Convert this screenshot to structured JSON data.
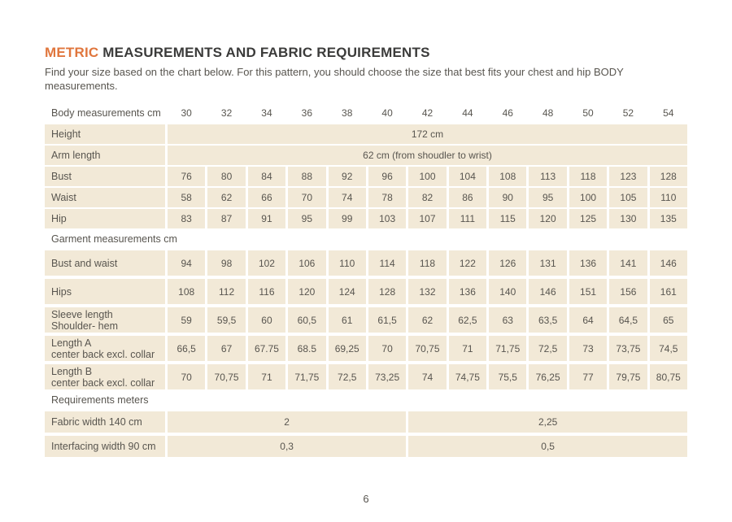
{
  "page": {
    "title_highlight": "METRIC",
    "title_rest": " MEASUREMENTS AND FABRIC REQUIREMENTS",
    "subtitle_line1": "Find your size based on the chart below. For this pattern, you should choose the size that best fits your chest and hip BODY",
    "subtitle_line2": "measurements.",
    "page_number": "6"
  },
  "colors": {
    "accent_orange": "#e0763d",
    "title_dark": "#3b3b3a",
    "text_gray": "#58554f",
    "cell_beige": "#f2e9d7",
    "background": "#ffffff"
  },
  "chart_data": {
    "type": "table",
    "title": "METRIC MEASUREMENTS AND FABRIC REQUIREMENTS",
    "header_label": "Body measurements cm",
    "sizes": [
      "30",
      "32",
      "34",
      "36",
      "38",
      "40",
      "42",
      "44",
      "46",
      "48",
      "50",
      "52",
      "54"
    ],
    "body_rows": [
      {
        "label": "Height",
        "span_value": "172 cm"
      },
      {
        "label": "Arm length",
        "span_value": "62 cm (from shoudler to wrist)"
      },
      {
        "label": "Bust",
        "values": [
          "76",
          "80",
          "84",
          "88",
          "92",
          "96",
          "100",
          "104",
          "108",
          "113",
          "118",
          "123",
          "128"
        ]
      },
      {
        "label": "Waist",
        "values": [
          "58",
          "62",
          "66",
          "70",
          "74",
          "78",
          "82",
          "86",
          "90",
          "95",
          "100",
          "105",
          "110"
        ]
      },
      {
        "label": "Hip",
        "values": [
          "83",
          "87",
          "91",
          "95",
          "99",
          "103",
          "107",
          "111",
          "115",
          "120",
          "125",
          "130",
          "135"
        ]
      }
    ],
    "garment_section_label": "Garment measurements cm",
    "garment_rows": [
      {
        "label": "Bust and waist",
        "values": [
          "94",
          "98",
          "102",
          "106",
          "110",
          "114",
          "118",
          "122",
          "126",
          "131",
          "136",
          "141",
          "146"
        ]
      },
      {
        "label": "Hips",
        "values": [
          "108",
          "112",
          "116",
          "120",
          "124",
          "128",
          "132",
          "136",
          "140",
          "146",
          "151",
          "156",
          "161"
        ]
      },
      {
        "label": "Sleeve length",
        "label2": "Shoulder- hem",
        "values": [
          "59",
          "59,5",
          "60",
          "60,5",
          "61",
          "61,5",
          "62",
          "62,5",
          "63",
          "63,5",
          "64",
          "64,5",
          "65"
        ]
      },
      {
        "label": "Length A",
        "label2": "center back excl. collar",
        "values": [
          "66,5",
          "67",
          "67.75",
          "68.5",
          "69,25",
          "70",
          "70,75",
          "71",
          "71,75",
          "72,5",
          "73",
          "73,75",
          "74,5"
        ]
      },
      {
        "label": "Length B",
        "label2": "center back excl. collar",
        "values": [
          "70",
          "70,75",
          "71",
          "71,75",
          "72,5",
          "73,25",
          "74",
          "74,75",
          "75,5",
          "76,25",
          "77",
          "79,75",
          "80,75"
        ]
      }
    ],
    "requirements_section_label": "Requirements meters",
    "requirement_rows": [
      {
        "label": "Fabric width 140 cm",
        "groups": [
          {
            "value": "2",
            "span": 6
          },
          {
            "value": "2,25",
            "span": 7
          }
        ]
      },
      {
        "label": "Interfacing width 90 cm",
        "groups": [
          {
            "value": "0,3",
            "span": 6
          },
          {
            "value": "0,5",
            "span": 7
          }
        ]
      }
    ]
  }
}
